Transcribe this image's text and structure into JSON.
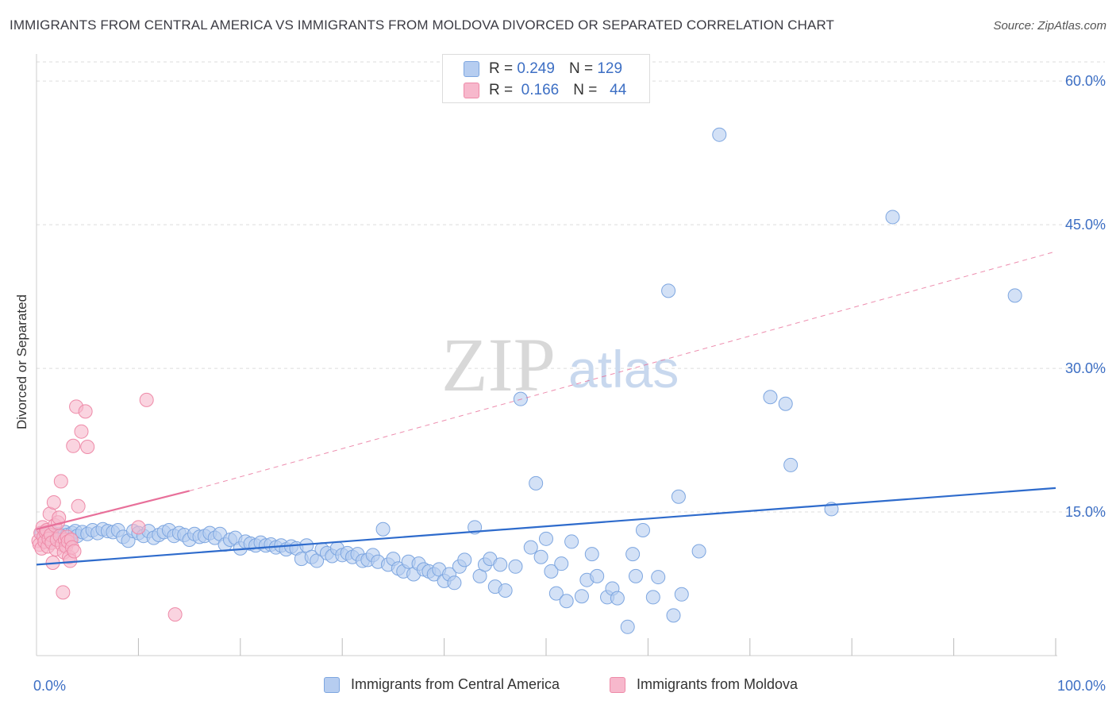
{
  "title": "IMMIGRANTS FROM CENTRAL AMERICA VS IMMIGRANTS FROM MOLDOVA DIVORCED OR SEPARATED CORRELATION CHART",
  "source": "Source: ZipAtlas.com",
  "watermark": {
    "zip": "ZIP",
    "atlas": "atlas"
  },
  "colors": {
    "blue_fill": "#b6cdf0",
    "blue_stroke": "#7da6e0",
    "blue_line": "#2e6bcc",
    "pink_fill": "#f7b8cc",
    "pink_stroke": "#ee8aa8",
    "pink_line": "#e8709a",
    "tick_text": "#3d6fc4",
    "grid": "#dddddd"
  },
  "legend": {
    "rows": [
      {
        "r_label": "R =",
        "r_value": "0.249",
        "n_label": "N =",
        "n_value": "129"
      },
      {
        "r_label": "R =",
        "r_value": "0.166",
        "n_label": "N =",
        "n_value": "44"
      }
    ]
  },
  "chart_data": {
    "type": "scatter",
    "xlabel": "",
    "ylabel": "Divorced or Separated",
    "xlim": [
      0,
      100
    ],
    "ylim": [
      0,
      62
    ],
    "y_ticks": [
      {
        "value": 15,
        "label": "15.0%"
      },
      {
        "value": 30,
        "label": "30.0%"
      },
      {
        "value": 45,
        "label": "45.0%"
      },
      {
        "value": 60,
        "label": "60.0%"
      }
    ],
    "x_tick_labels": [
      {
        "value": 0,
        "label": "0.0%"
      },
      {
        "value": 100,
        "label": "100.0%"
      }
    ],
    "x_minor_ticks": [
      10,
      20,
      30,
      40,
      50,
      60,
      70,
      80,
      90,
      100
    ],
    "grid": true,
    "legend_position": "top-center",
    "series": [
      {
        "name": "Immigrants from Central America",
        "color": "#b6cdf0",
        "trend": {
          "x": [
            0,
            100
          ],
          "y": [
            9.5,
            17.5
          ],
          "dashed_to": null
        },
        "points": [
          [
            0.5,
            12.8
          ],
          [
            0.8,
            12.3
          ],
          [
            1.0,
            12.6
          ],
          [
            1.2,
            12.0
          ],
          [
            1.5,
            12.9
          ],
          [
            1.7,
            12.5
          ],
          [
            2.0,
            12.2
          ],
          [
            2.2,
            12.7
          ],
          [
            2.5,
            12.4
          ],
          [
            2.8,
            12.9
          ],
          [
            3.0,
            12.6
          ],
          [
            3.3,
            12.1
          ],
          [
            3.5,
            12.8
          ],
          [
            3.8,
            13.0
          ],
          [
            4.0,
            12.5
          ],
          [
            4.5,
            12.9
          ],
          [
            5.0,
            12.7
          ],
          [
            5.5,
            13.1
          ],
          [
            6.0,
            12.8
          ],
          [
            6.5,
            13.2
          ],
          [
            7.0,
            13.0
          ],
          [
            7.5,
            12.9
          ],
          [
            8.0,
            13.1
          ],
          [
            8.5,
            12.4
          ],
          [
            9.0,
            12.0
          ],
          [
            9.5,
            13.0
          ],
          [
            10.0,
            12.8
          ],
          [
            10.5,
            12.5
          ],
          [
            11.0,
            13.0
          ],
          [
            11.5,
            12.3
          ],
          [
            12.0,
            12.6
          ],
          [
            12.5,
            12.9
          ],
          [
            13.0,
            13.1
          ],
          [
            13.5,
            12.5
          ],
          [
            14.0,
            12.8
          ],
          [
            14.5,
            12.6
          ],
          [
            15.0,
            12.1
          ],
          [
            15.5,
            12.7
          ],
          [
            16.0,
            12.4
          ],
          [
            16.5,
            12.5
          ],
          [
            17.0,
            12.8
          ],
          [
            17.5,
            12.3
          ],
          [
            18.0,
            12.7
          ],
          [
            18.5,
            11.6
          ],
          [
            19.0,
            12.1
          ],
          [
            19.5,
            12.3
          ],
          [
            20.0,
            11.2
          ],
          [
            20.5,
            11.9
          ],
          [
            21.0,
            11.7
          ],
          [
            21.5,
            11.5
          ],
          [
            22.0,
            11.8
          ],
          [
            22.5,
            11.5
          ],
          [
            23.0,
            11.6
          ],
          [
            23.5,
            11.3
          ],
          [
            24.0,
            11.5
          ],
          [
            24.5,
            11.1
          ],
          [
            25.0,
            11.4
          ],
          [
            25.5,
            11.2
          ],
          [
            26.0,
            10.1
          ],
          [
            26.5,
            11.5
          ],
          [
            27.0,
            10.3
          ],
          [
            27.5,
            9.9
          ],
          [
            28.0,
            11.1
          ],
          [
            28.5,
            10.7
          ],
          [
            29.0,
            10.4
          ],
          [
            29.5,
            11.2
          ],
          [
            30.0,
            10.5
          ],
          [
            30.5,
            10.7
          ],
          [
            31.0,
            10.3
          ],
          [
            31.5,
            10.6
          ],
          [
            32.0,
            9.9
          ],
          [
            32.5,
            10.0
          ],
          [
            33.0,
            10.5
          ],
          [
            33.5,
            9.8
          ],
          [
            34.0,
            13.2
          ],
          [
            34.5,
            9.5
          ],
          [
            35.0,
            10.1
          ],
          [
            35.5,
            9.1
          ],
          [
            36.0,
            8.8
          ],
          [
            36.5,
            9.8
          ],
          [
            37.0,
            8.5
          ],
          [
            37.5,
            9.6
          ],
          [
            38.0,
            9.0
          ],
          [
            38.5,
            8.8
          ],
          [
            39.0,
            8.5
          ],
          [
            39.5,
            9.0
          ],
          [
            40.0,
            7.8
          ],
          [
            40.5,
            8.5
          ],
          [
            41.0,
            7.6
          ],
          [
            41.5,
            9.3
          ],
          [
            42.0,
            10.0
          ],
          [
            43.0,
            13.4
          ],
          [
            43.5,
            8.3
          ],
          [
            44.0,
            9.5
          ],
          [
            44.5,
            10.1
          ],
          [
            45.0,
            7.2
          ],
          [
            45.5,
            9.5
          ],
          [
            46.0,
            6.8
          ],
          [
            47.0,
            9.3
          ],
          [
            47.5,
            26.8
          ],
          [
            48.5,
            11.3
          ],
          [
            49.0,
            18.0
          ],
          [
            49.5,
            10.3
          ],
          [
            50.0,
            12.2
          ],
          [
            50.5,
            8.8
          ],
          [
            51.0,
            6.5
          ],
          [
            51.5,
            9.6
          ],
          [
            52.0,
            5.7
          ],
          [
            52.5,
            11.9
          ],
          [
            53.5,
            6.2
          ],
          [
            54.0,
            7.9
          ],
          [
            54.5,
            10.6
          ],
          [
            55.0,
            8.3
          ],
          [
            56.0,
            6.1
          ],
          [
            56.5,
            7.0
          ],
          [
            57.0,
            6.0
          ],
          [
            58.0,
            3.0
          ],
          [
            58.5,
            10.6
          ],
          [
            58.8,
            8.3
          ],
          [
            59.5,
            13.1
          ],
          [
            60.5,
            6.1
          ],
          [
            61.0,
            8.2
          ],
          [
            62.0,
            38.1
          ],
          [
            62.5,
            4.2
          ],
          [
            63.0,
            16.6
          ],
          [
            63.3,
            6.4
          ],
          [
            65.0,
            10.9
          ],
          [
            67.0,
            54.4
          ],
          [
            72.0,
            27.0
          ],
          [
            73.5,
            26.3
          ],
          [
            74.0,
            19.9
          ],
          [
            78.0,
            15.3
          ],
          [
            84.0,
            45.8
          ],
          [
            96.0,
            37.6
          ]
        ]
      },
      {
        "name": "Immigrants from Moldova",
        "color": "#f7b8cc",
        "trend": {
          "x": [
            0,
            15
          ],
          "y": [
            13.2,
            17.2
          ],
          "dashed_to": [
            100,
            42.2
          ]
        },
        "points": [
          [
            0.2,
            12.0
          ],
          [
            0.3,
            11.6
          ],
          [
            0.4,
            12.8
          ],
          [
            0.5,
            11.2
          ],
          [
            0.6,
            13.4
          ],
          [
            0.7,
            12.4
          ],
          [
            0.8,
            11.9
          ],
          [
            0.9,
            12.9
          ],
          [
            1.0,
            13.1
          ],
          [
            1.1,
            11.4
          ],
          [
            1.2,
            12.2
          ],
          [
            1.3,
            14.8
          ],
          [
            1.4,
            12.6
          ],
          [
            1.5,
            11.8
          ],
          [
            1.6,
            9.7
          ],
          [
            1.7,
            16.0
          ],
          [
            1.8,
            13.6
          ],
          [
            1.9,
            11.1
          ],
          [
            2.0,
            12.1
          ],
          [
            2.1,
            13.9
          ],
          [
            2.2,
            14.4
          ],
          [
            2.3,
            12.5
          ],
          [
            2.4,
            18.2
          ],
          [
            2.5,
            11.6
          ],
          [
            2.6,
            6.6
          ],
          [
            2.7,
            10.8
          ],
          [
            2.8,
            12.1
          ],
          [
            2.9,
            11.4
          ],
          [
            3.0,
            12.4
          ],
          [
            3.1,
            11.9
          ],
          [
            3.2,
            10.3
          ],
          [
            3.3,
            9.9
          ],
          [
            3.4,
            12.1
          ],
          [
            3.5,
            11.3
          ],
          [
            3.6,
            21.9
          ],
          [
            3.7,
            10.9
          ],
          [
            3.9,
            26.0
          ],
          [
            4.1,
            15.6
          ],
          [
            4.4,
            23.4
          ],
          [
            4.8,
            25.5
          ],
          [
            5.0,
            21.8
          ],
          [
            10.0,
            13.4
          ],
          [
            10.8,
            26.7
          ],
          [
            13.6,
            4.3
          ]
        ]
      }
    ]
  },
  "bottom_legend": [
    {
      "label": "Immigrants from Central America"
    },
    {
      "label": "Immigrants from Moldova"
    }
  ]
}
